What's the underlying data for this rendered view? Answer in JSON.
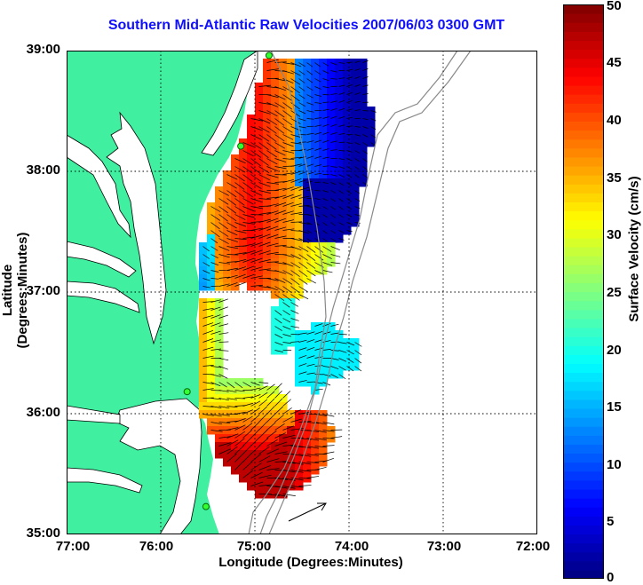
{
  "title": "Southern Mid-Atlantic Raw Velocities 2007/06/03 0300 GMT",
  "xlabel": "Longitude (Degrees:Minutes)",
  "ylabel": "Latitude (Degrees:Minutes)",
  "x_ticks": [
    "77:00",
    "76:00",
    "75:00",
    "74:00",
    "73:00",
    "72:00"
  ],
  "y_ticks": [
    "39:00",
    "38:00",
    "37:00",
    "36:00",
    "35:00"
  ],
  "colorbar": {
    "label": "Surface Velocity (cm/s)",
    "ticks": [
      "0",
      "5",
      "10",
      "15",
      "20",
      "25",
      "30",
      "35",
      "40",
      "45",
      "50"
    ],
    "range": [
      0,
      50
    ]
  },
  "map": {
    "lon_range": [
      -77.0,
      -72.0
    ],
    "lat_range": [
      35.0,
      39.0
    ],
    "land_color": "#40f0a0",
    "grid": true,
    "stations": [
      {
        "lon": -74.85,
        "lat": 38.96
      },
      {
        "lon": -75.15,
        "lat": 38.21
      },
      {
        "lon": -75.72,
        "lat": 36.18
      },
      {
        "lon": -75.52,
        "lat": 35.23
      }
    ]
  }
}
